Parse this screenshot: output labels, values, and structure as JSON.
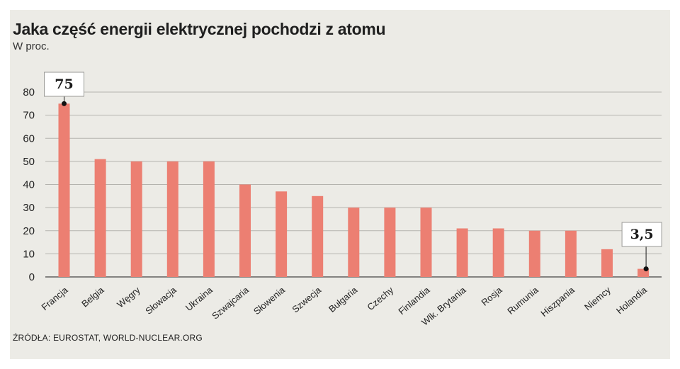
{
  "chart_data": {
    "type": "bar",
    "title": "Jaka część energii elektrycznej pochodzi z atomu",
    "subtitle": "W proc.",
    "source": "ŹRÓDŁA: EUROSTAT, WORLD-NUCLEAR.ORG",
    "categories": [
      "Francja",
      "Belgia",
      "Węgry",
      "Słowacja",
      "Ukraina",
      "Szwajcaria",
      "Słowenia",
      "Szwecja",
      "Bułgaria",
      "Czechy",
      "Finlandia",
      "Wlk. Brytania",
      "Rosja",
      "Rumunia",
      "Hiszpania",
      "Niemcy",
      "Holandia"
    ],
    "values": [
      75,
      51,
      50,
      50,
      50,
      40,
      37,
      35,
      30,
      30,
      30,
      21,
      21,
      20,
      20,
      12,
      3.5
    ],
    "ylim": [
      0,
      80
    ],
    "yticks": [
      0,
      10,
      20,
      30,
      40,
      50,
      60,
      70,
      80
    ],
    "grid": true,
    "bar_color": "#ec7f72",
    "callouts": [
      {
        "category": "Francja",
        "label": "75"
      },
      {
        "category": "Holandia",
        "label": "3,5"
      }
    ]
  }
}
